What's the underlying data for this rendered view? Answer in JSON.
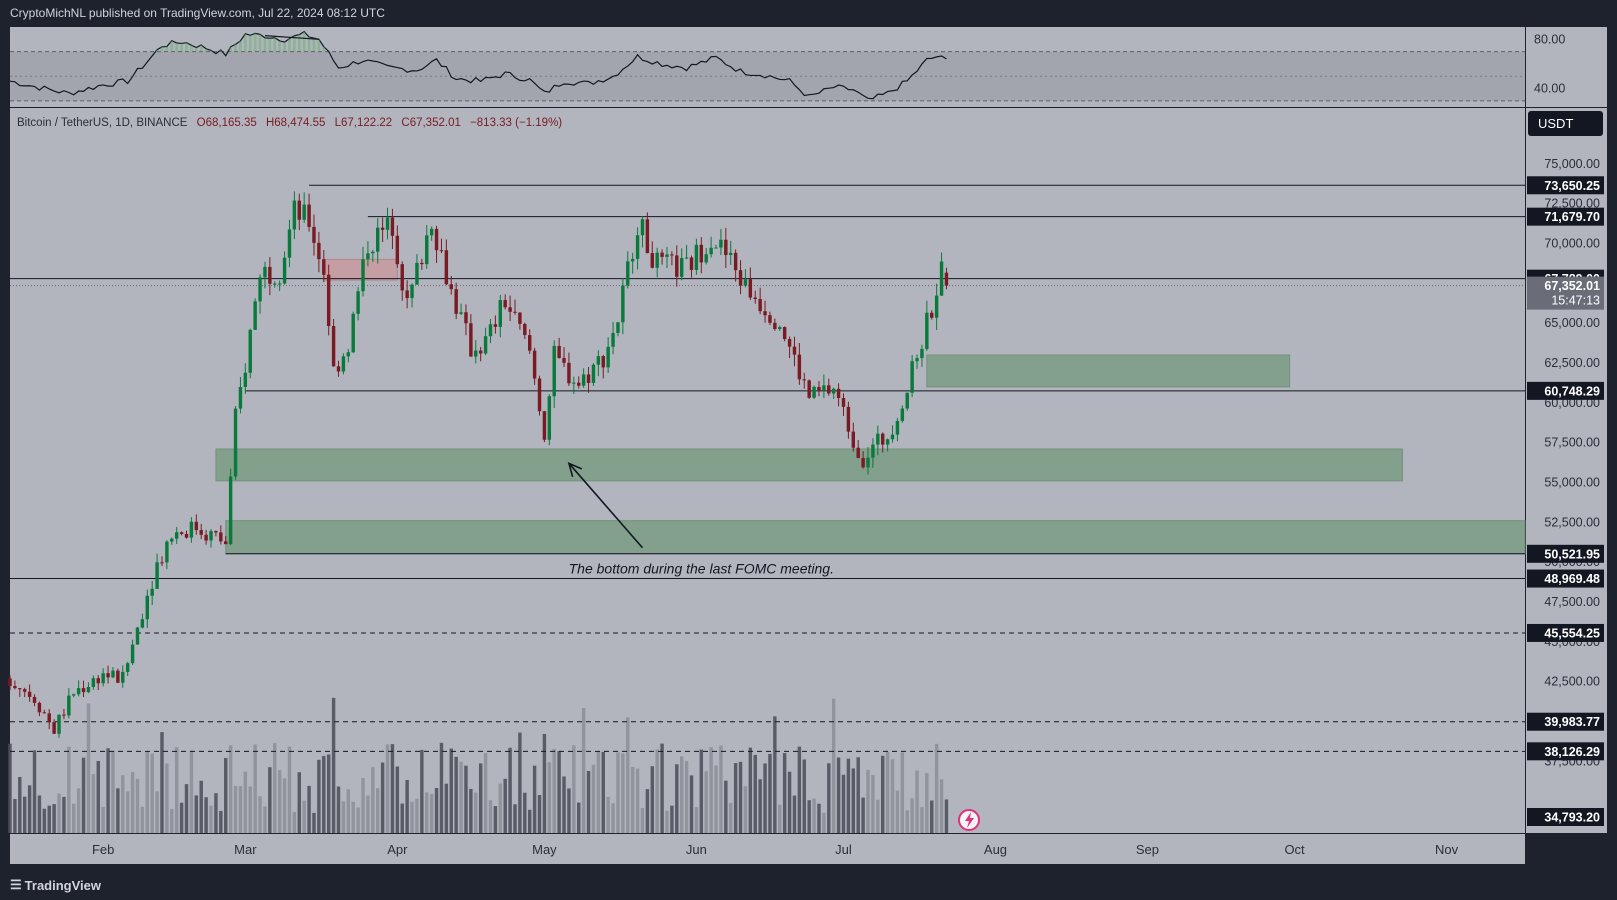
{
  "header": {
    "published_by": "CryptoMichNL published on TradingView.com, Jul 22, 2024 08:12 UTC",
    "symbol_line": "Bitcoin / TetherUS, 1D, BINANCE",
    "o": "O68,165.35",
    "h": "H68,474.55",
    "l": "L67,122.22",
    "c": "C67,352.01",
    "chg": "−813.33 (−1.19%)",
    "currency_button": "USDT"
  },
  "footer": {
    "brand": "TradingView",
    "logo": "tv-logo-icon"
  },
  "colors": {
    "up": "#0a7a3c",
    "down": "#7a1b23",
    "zone": "#7f9e87",
    "supply": "#c99a9f",
    "panel": "#b2b5be",
    "frame": "#1e222d"
  },
  "chart_data": {
    "type": "candlestick",
    "symbol": "BTCUSDT",
    "interval": "1D",
    "ylim": [
      33000,
      78500
    ],
    "y_scale": "linear",
    "xlim": [
      "2024-01-13",
      "2024-11-17"
    ],
    "y_ticks": [
      "75,000.00",
      "72,500.00",
      "70,000.00",
      "65,000.00",
      "62,500.00",
      "60,000.00",
      "57,500.00",
      "55,000.00",
      "52,500.00",
      "50,000.00",
      "47,500.00",
      "45,000.00",
      "42,500.00",
      "37,500.00"
    ],
    "x_ticks": [
      {
        "label": "Feb",
        "date": "2024-02-01"
      },
      {
        "label": "Mar",
        "date": "2024-03-01"
      },
      {
        "label": "Apr",
        "date": "2024-04-01"
      },
      {
        "label": "May",
        "date": "2024-05-01"
      },
      {
        "label": "Jun",
        "date": "2024-06-01"
      },
      {
        "label": "Jul",
        "date": "2024-07-01"
      },
      {
        "label": "Aug",
        "date": "2024-08-01"
      },
      {
        "label": "Sep",
        "date": "2024-09-01"
      },
      {
        "label": "Oct",
        "date": "2024-10-01"
      },
      {
        "label": "Nov",
        "date": "2024-11-01"
      }
    ],
    "price_anchors": [
      [
        "2024-01-13",
        42700
      ],
      [
        "2024-01-18",
        41500
      ],
      [
        "2024-01-22",
        39500
      ],
      [
        "2024-01-26",
        41800
      ],
      [
        "2024-02-01",
        43000
      ],
      [
        "2024-02-05",
        42600
      ],
      [
        "2024-02-09",
        47000
      ],
      [
        "2024-02-12",
        49900
      ],
      [
        "2024-02-15",
        51800
      ],
      [
        "2024-02-20",
        52200
      ],
      [
        "2024-02-26",
        51200
      ],
      [
        "2024-02-28",
        59000
      ],
      [
        "2024-03-01",
        62400
      ],
      [
        "2024-03-04",
        68300
      ],
      [
        "2024-03-08",
        68300
      ],
      [
        "2024-03-11",
        72000
      ],
      [
        "2024-03-14",
        71400
      ],
      [
        "2024-03-17",
        68300
      ],
      [
        "2024-03-19",
        62000
      ],
      [
        "2024-03-22",
        63700
      ],
      [
        "2024-03-26",
        70000
      ],
      [
        "2024-03-31",
        71200
      ],
      [
        "2024-04-03",
        66000
      ],
      [
        "2024-04-08",
        71600
      ],
      [
        "2024-04-12",
        67000
      ],
      [
        "2024-04-16",
        63400
      ],
      [
        "2024-04-19",
        63800
      ],
      [
        "2024-04-23",
        66400
      ],
      [
        "2024-04-28",
        63200
      ],
      [
        "2024-05-01",
        58200
      ],
      [
        "2024-05-03",
        62800
      ],
      [
        "2024-05-08",
        61200
      ],
      [
        "2024-05-13",
        62900
      ],
      [
        "2024-05-16",
        65300
      ],
      [
        "2024-05-20",
        71400
      ],
      [
        "2024-05-24",
        68600
      ],
      [
        "2024-05-30",
        68400
      ],
      [
        "2024-06-04",
        70500
      ],
      [
        "2024-06-07",
        69300
      ],
      [
        "2024-06-11",
        67300
      ],
      [
        "2024-06-18",
        65100
      ],
      [
        "2024-06-24",
        60300
      ],
      [
        "2024-06-29",
        60900
      ],
      [
        "2024-07-04",
        57000
      ],
      [
        "2024-07-05",
        56600
      ],
      [
        "2024-07-10",
        58000
      ],
      [
        "2024-07-14",
        60800
      ],
      [
        "2024-07-17",
        64000
      ],
      [
        "2024-07-20",
        67100
      ],
      [
        "2024-07-21",
        68160
      ],
      [
        "2024-07-22",
        67352
      ]
    ],
    "last_candle": {
      "date": "2024-07-22",
      "open": 68165.35,
      "high": 68474.55,
      "low": 67122.22,
      "close": 67352.01
    },
    "levels": [
      {
        "price": 73650.25,
        "label": "73,650.25",
        "style": "solid",
        "from": "2024-03-14"
      },
      {
        "price": 71679.7,
        "label": "71,679.70",
        "style": "solid",
        "from": "2024-03-26"
      },
      {
        "price": 67789.0,
        "label": "67,789.00",
        "style": "solid",
        "from": "2024-01-13"
      },
      {
        "price": 60748.29,
        "label": "60,748.29",
        "style": "solid",
        "from": "2024-03-01"
      },
      {
        "price": 50521.95,
        "label": "50,521.95",
        "style": "solid",
        "from": "2024-02-26"
      },
      {
        "price": 48969.48,
        "label": "48,969.48",
        "style": "solid",
        "from": "2024-01-13"
      },
      {
        "price": 45554.25,
        "label": "45,554.25",
        "style": "dashed",
        "from": "2024-01-13"
      },
      {
        "price": 39983.77,
        "label": "39,983.77",
        "style": "dashed",
        "from": "2024-01-13"
      },
      {
        "price": 38126.29,
        "label": "38,126.29",
        "style": "dashed",
        "from": "2024-01-13"
      }
    ],
    "current_price_label": "67,352.01",
    "countdown": "15:47:13",
    "last_axis_label": "34,793.20",
    "zones": [
      {
        "kind": "demand",
        "from": "2024-07-18",
        "to": "2024-09-30",
        "low": 61000,
        "high": 63000
      },
      {
        "kind": "demand",
        "from": "2024-02-24",
        "to": "2024-10-23",
        "low": 55100,
        "high": 57100
      },
      {
        "kind": "demand",
        "from": "2024-02-26",
        "to": "2024-11-17",
        "low": 50521.95,
        "high": 52600
      },
      {
        "kind": "supply",
        "from": "2024-03-17",
        "to": "2024-04-01",
        "low": 67700,
        "high": 69000
      }
    ],
    "annotation": {
      "text": "The bottom during the last FOMC meeting.",
      "arrow_from": [
        "2024-05-21",
        50900
      ],
      "arrow_to": [
        "2024-05-06",
        56200
      ],
      "text_at": [
        "2024-06-02",
        49300
      ]
    },
    "rsi": {
      "levels": [
        "80.00",
        "40.00"
      ],
      "range": [
        25,
        90
      ],
      "band": [
        30,
        70
      ],
      "anchors": [
        [
          "2024-01-13",
          46
        ],
        [
          "2024-01-20",
          40
        ],
        [
          "2024-01-25",
          36
        ],
        [
          "2024-02-01",
          43
        ],
        [
          "2024-02-06",
          46
        ],
        [
          "2024-02-10",
          62
        ],
        [
          "2024-02-13",
          75
        ],
        [
          "2024-02-17",
          78
        ],
        [
          "2024-02-22",
          73
        ],
        [
          "2024-02-26",
          68
        ],
        [
          "2024-03-01",
          84
        ],
        [
          "2024-03-05",
          83
        ],
        [
          "2024-03-09",
          80
        ],
        [
          "2024-03-13",
          84
        ],
        [
          "2024-03-16",
          80
        ],
        [
          "2024-03-20",
          57
        ],
        [
          "2024-03-25",
          63
        ],
        [
          "2024-03-30",
          57
        ],
        [
          "2024-04-05",
          55
        ],
        [
          "2024-04-09",
          63
        ],
        [
          "2024-04-13",
          48
        ],
        [
          "2024-04-18",
          46
        ],
        [
          "2024-04-23",
          52
        ],
        [
          "2024-04-28",
          47
        ],
        [
          "2024-05-01",
          36
        ],
        [
          "2024-05-05",
          46
        ],
        [
          "2024-05-10",
          44
        ],
        [
          "2024-05-15",
          50
        ],
        [
          "2024-05-20",
          66
        ],
        [
          "2024-05-25",
          60
        ],
        [
          "2024-05-30",
          57
        ],
        [
          "2024-06-05",
          65
        ],
        [
          "2024-06-10",
          54
        ],
        [
          "2024-06-15",
          51
        ],
        [
          "2024-06-20",
          46
        ],
        [
          "2024-06-24",
          33
        ],
        [
          "2024-06-29",
          41
        ],
        [
          "2024-07-03",
          39
        ],
        [
          "2024-07-06",
          30
        ],
        [
          "2024-07-10",
          36
        ],
        [
          "2024-07-14",
          46
        ],
        [
          "2024-07-18",
          63
        ],
        [
          "2024-07-20",
          66
        ],
        [
          "2024-07-22",
          63
        ]
      ],
      "divergence": [
        [
          "2024-03-05",
          83
        ],
        [
          "2024-03-16",
          80
        ]
      ]
    }
  }
}
